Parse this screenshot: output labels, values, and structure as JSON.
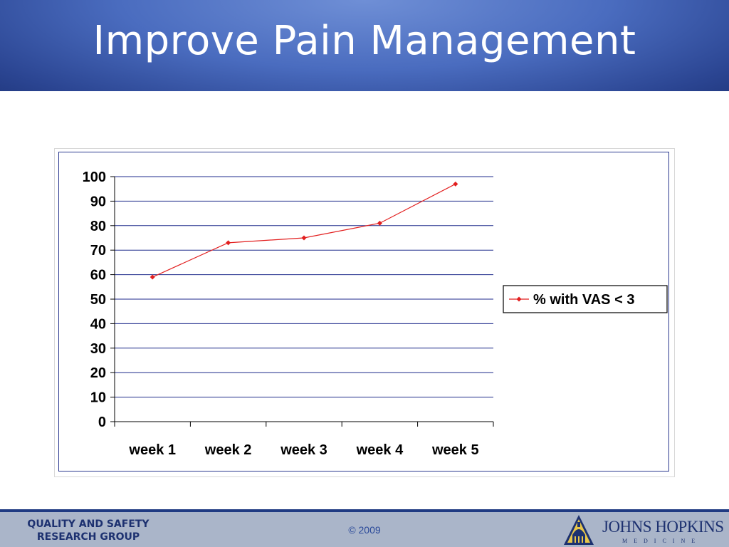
{
  "slide": {
    "title": "Improve Pain Management"
  },
  "chart_data": {
    "type": "line",
    "categories": [
      "week 1",
      "week 2",
      "week 3",
      "week 4",
      "week 5"
    ],
    "series": [
      {
        "name": "% with VAS < 3",
        "values": [
          59,
          73,
          75,
          81,
          97
        ],
        "color": "#e21f1f"
      }
    ],
    "ylim": [
      0,
      100
    ],
    "yticks": [
      "0",
      "10",
      "20",
      "30",
      "40",
      "50",
      "60",
      "70",
      "80",
      "90",
      "100"
    ],
    "grid": true,
    "gridColor": "#1f2b8c",
    "legend": "right"
  },
  "footer": {
    "group_line1": "QUALITY AND SAFETY",
    "group_line2": "RESEARCH GROUP",
    "copyright": "© 2009",
    "brand_name": "JOHNS HOPKINS",
    "brand_sub": "MEDICINE"
  }
}
